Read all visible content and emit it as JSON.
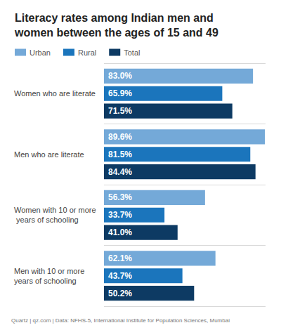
{
  "chart_data": {
    "type": "bar",
    "orientation": "horizontal",
    "title": "Literacy rates among Indian men and women between the ages of 15 and 49",
    "categories": [
      "Women who are literate",
      "Men who are literate",
      "Women with 10 or more years of schooling",
      "Men with 10 or more years of schooling"
    ],
    "series": [
      {
        "name": "Urban",
        "color": "#74a9d8",
        "values": [
          83.0,
          89.6,
          56.3,
          62.1
        ],
        "value_labels": [
          "83.0%",
          "89.6%",
          "56.3%",
          "62.1%"
        ]
      },
      {
        "name": "Rural",
        "color": "#1b75bc",
        "values": [
          65.9,
          81.5,
          33.7,
          43.7
        ],
        "value_labels": [
          "65.9%",
          "81.5%",
          "33.7%",
          "43.7%"
        ]
      },
      {
        "name": "Total",
        "color": "#0d3a63",
        "values": [
          71.5,
          84.4,
          41.0,
          50.2
        ],
        "value_labels": [
          "71.5%",
          "84.4%",
          "41.0%",
          "50.2%"
        ]
      }
    ],
    "xlim": [
      0,
      90
    ],
    "xticks": [
      0,
      90
    ],
    "tick_labels": false,
    "grid": false,
    "legend": "top-left",
    "data_labels": true,
    "source": "Quartz | qz.com | Data: NFHS-5, International Institute for Population Sciences, Mumbai"
  }
}
